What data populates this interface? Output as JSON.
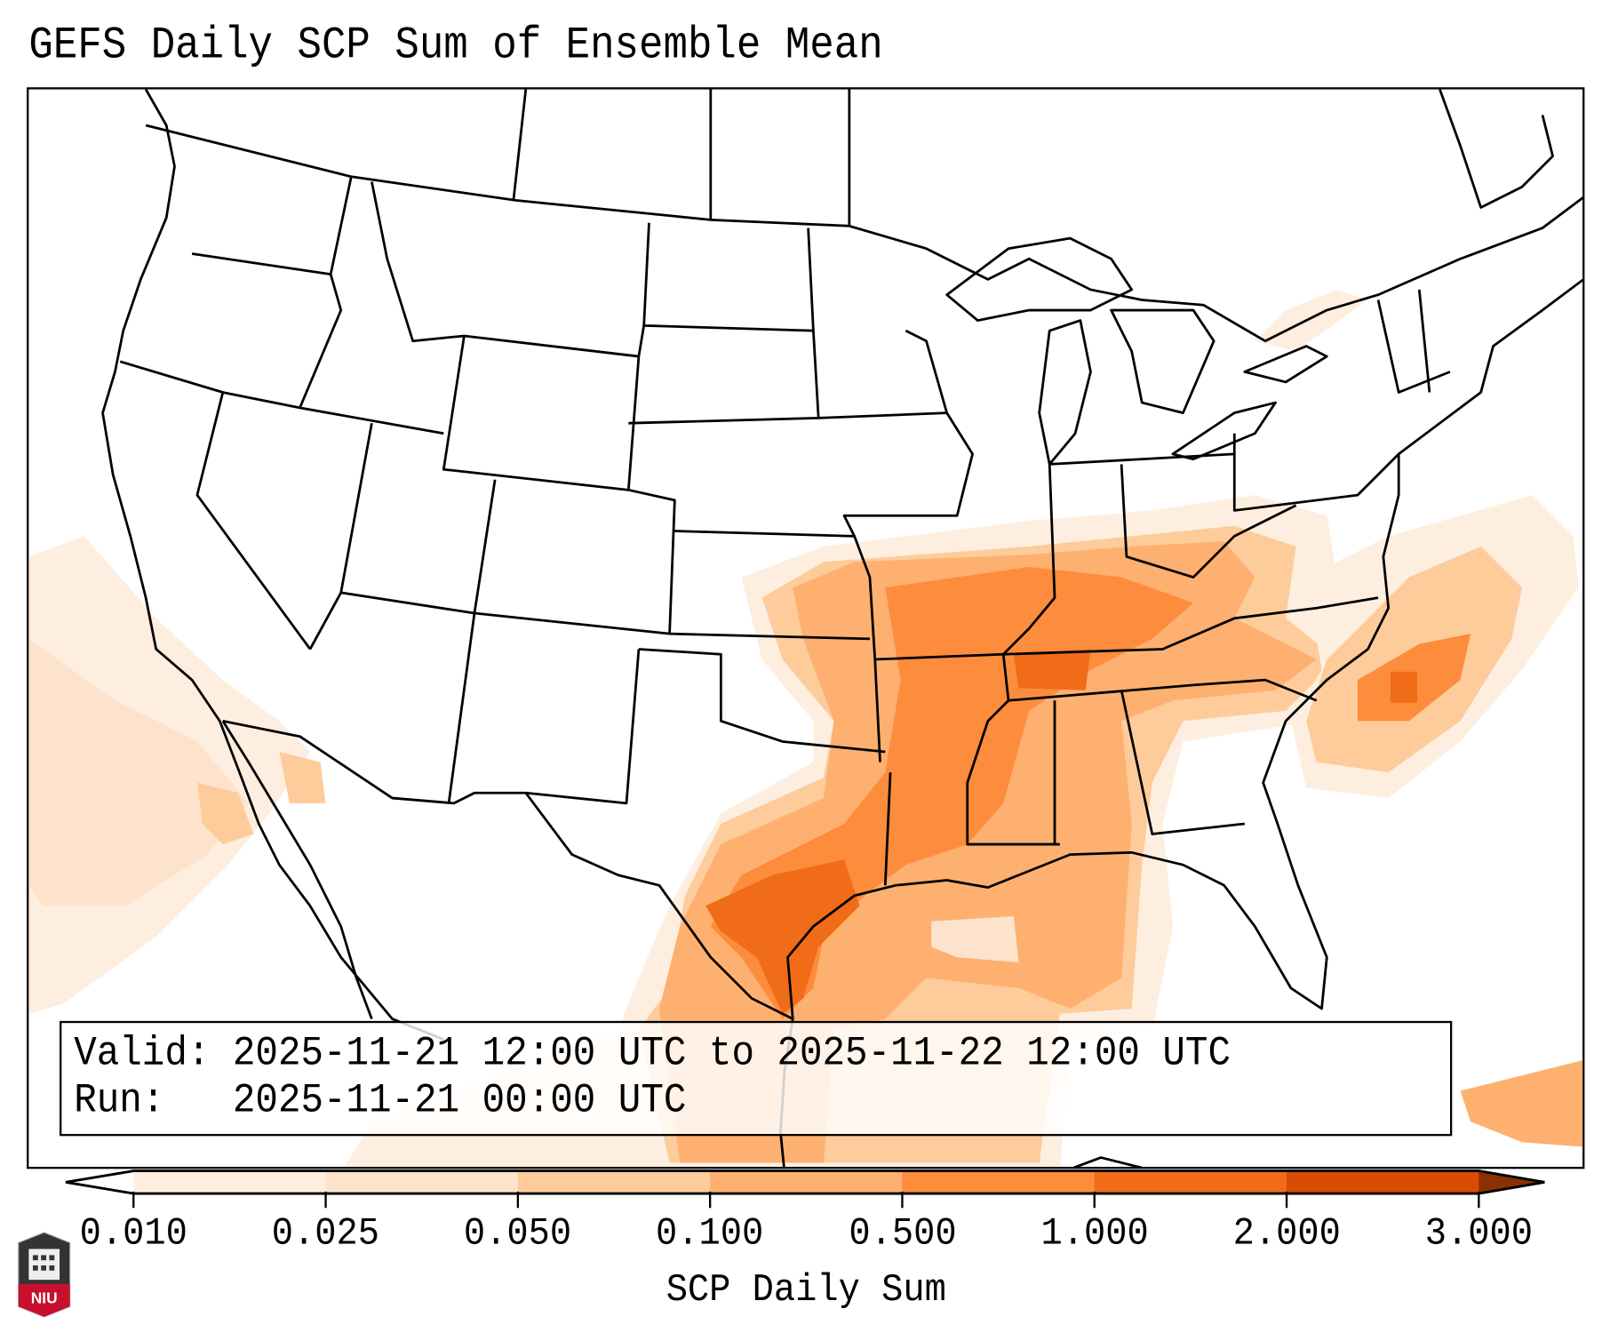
{
  "title": "GEFS Daily SCP Sum of Ensemble Mean",
  "info": {
    "valid_label": "Valid:",
    "valid_text": "2025-11-21 12:00 UTC to 2025-11-22 12:00 UTC",
    "run_label": "Run:",
    "run_text": "2025-11-21 00:00 UTC"
  },
  "colorbar": {
    "label": "SCP Daily Sum",
    "ticks": [
      "0.010",
      "0.025",
      "0.050",
      "0.100",
      "0.500",
      "1.000",
      "2.000",
      "3.000"
    ],
    "colors": [
      "#fdeee0",
      "#fde3cb",
      "#fdcc9a",
      "#fdb070",
      "#fd8c3c",
      "#f06c18",
      "#d94c03"
    ],
    "under_color": "#ffffff",
    "over_color": "#8b3005"
  },
  "logo": {
    "text": "NIU"
  }
}
